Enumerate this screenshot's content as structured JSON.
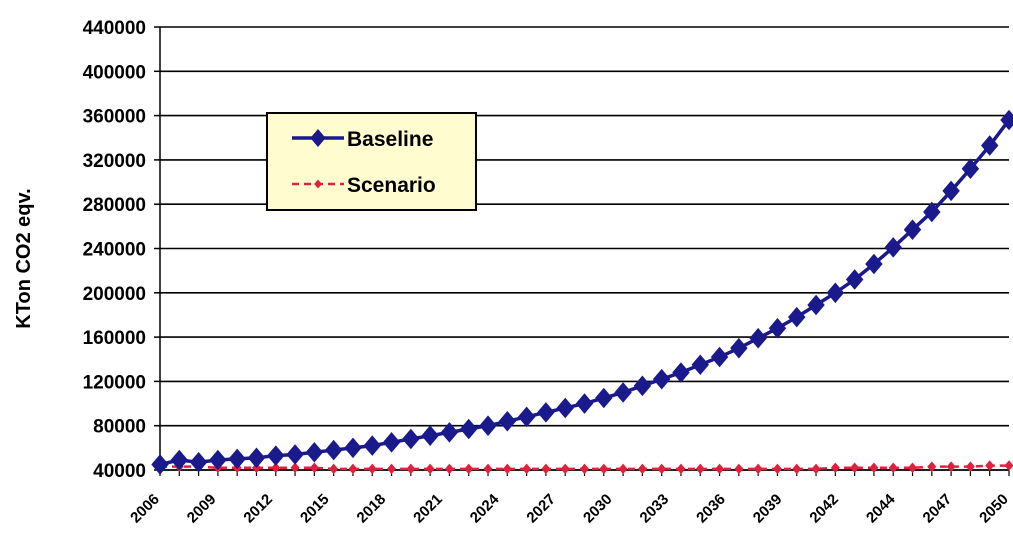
{
  "chart_data": {
    "type": "line",
    "title": "",
    "xlabel": "",
    "ylabel": "KTon CO2 eqv.",
    "ylim": [
      40000,
      440000
    ],
    "xlim": [
      2006,
      2050
    ],
    "grid": "horizontal",
    "legend_position": "upper-left",
    "colors": {
      "Baseline": "#1a1a8c",
      "Scenario": "#e0203c",
      "legend_bg": "#fffdd0"
    },
    "y_ticks": [
      "40000",
      "80000",
      "120000",
      "160000",
      "200000",
      "240000",
      "280000",
      "320000",
      "360000",
      "400000",
      "440000"
    ],
    "x_tick_labels": [
      "2006",
      "2009",
      "2012",
      "2015",
      "2018",
      "2021",
      "2024",
      "2027",
      "2030",
      "2033",
      "2036",
      "2039",
      "2042",
      "2044",
      "2047",
      "2050"
    ],
    "x": [
      2006,
      2007,
      2008,
      2009,
      2010,
      2011,
      2012,
      2013,
      2014,
      2015,
      2016,
      2017,
      2018,
      2019,
      2020,
      2021,
      2022,
      2023,
      2024,
      2025,
      2026,
      2027,
      2028,
      2029,
      2030,
      2031,
      2032,
      2033,
      2034,
      2035,
      2036,
      2037,
      2038,
      2039,
      2040,
      2041,
      2042,
      2043,
      2044,
      2045,
      2046,
      2047,
      2048,
      2049,
      2050
    ],
    "series": [
      {
        "name": "Baseline",
        "marker": "diamond",
        "values": [
          45000,
          49000,
          47000,
          49000,
          50000,
          51000,
          53000,
          54000,
          56000,
          58000,
          60000,
          62000,
          65000,
          68000,
          71000,
          74000,
          77000,
          80000,
          84000,
          88000,
          92000,
          96000,
          100000,
          105000,
          110000,
          116000,
          122000,
          128000,
          135000,
          142000,
          150000,
          159000,
          168000,
          178000,
          189000,
          200000,
          212000,
          226000,
          241000,
          257000,
          273000,
          292000,
          312000,
          333000,
          356000
        ]
      },
      {
        "name": "Scenario",
        "marker": "small-diamond",
        "values": [
          43000,
          43000,
          43000,
          42000,
          42000,
          42000,
          42000,
          42000,
          42000,
          41000,
          41000,
          41000,
          41000,
          41000,
          41000,
          41000,
          41000,
          41000,
          41000,
          41000,
          41000,
          41000,
          41000,
          41000,
          41000,
          41000,
          41000,
          41000,
          41000,
          41000,
          41000,
          41000,
          41000,
          41000,
          41000,
          42000,
          42000,
          42000,
          42000,
          42000,
          43000,
          43000,
          43000,
          44000,
          44000
        ]
      }
    ],
    "legend": [
      "Baseline",
      "Scenario"
    ]
  }
}
